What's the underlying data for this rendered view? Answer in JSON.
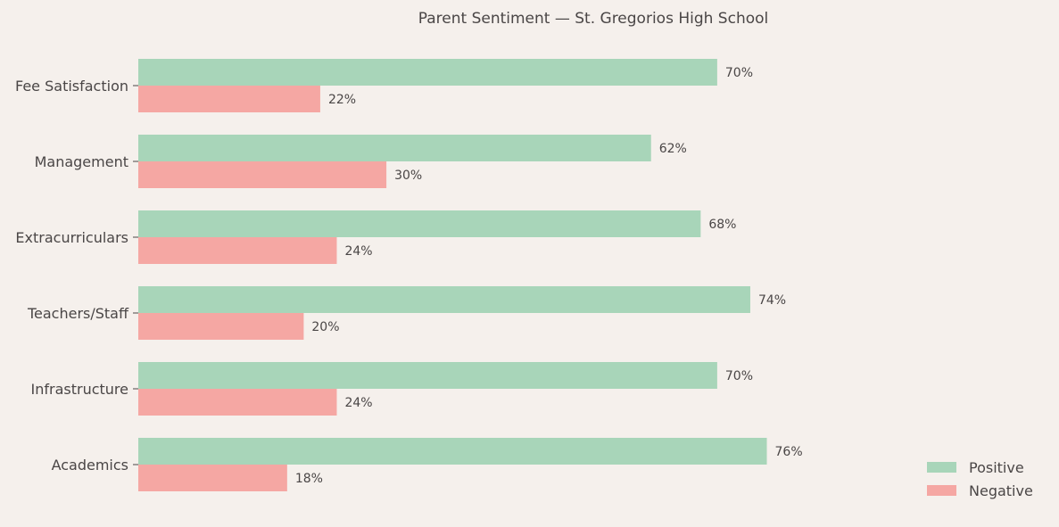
{
  "chart_data": {
    "type": "bar",
    "orientation": "horizontal",
    "title": "Parent Sentiment — St. Gregorios High School",
    "categories": [
      "Fee Satisfaction",
      "Management",
      "Extracurriculars",
      "Teachers/Staff",
      "Infrastructure",
      "Academics"
    ],
    "series": [
      {
        "name": "Positive",
        "color": "#a8d5b9",
        "values": [
          70,
          62,
          68,
          74,
          70,
          76
        ],
        "labels": [
          "70%",
          "62%",
          "68%",
          "74%",
          "70%",
          "76%"
        ]
      },
      {
        "name": "Negative",
        "color": "#f5a7a3",
        "values": [
          22,
          30,
          24,
          20,
          24,
          18
        ],
        "labels": [
          "22%",
          "30%",
          "24%",
          "20%",
          "24%",
          "18%"
        ]
      }
    ],
    "value_unit": "%",
    "xaxis_visible": false,
    "grid": false,
    "legend_position": "bottom-right",
    "background": "#f5f0ec"
  }
}
